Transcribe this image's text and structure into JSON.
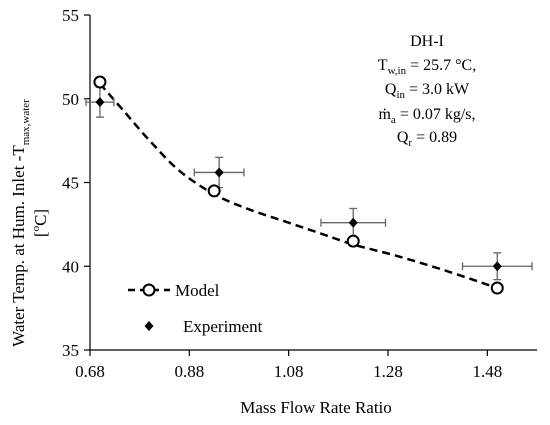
{
  "chart_data": {
    "type": "scatter",
    "title": "",
    "xlabel": "Mass Flow Rate Ratio",
    "ylabel": {
      "prefix": "Water Temp. at Hum. Inlet -T",
      "subscript": "max,water",
      "unit_open": "[",
      "unit_sup": "o",
      "unit_rest": "C]"
    },
    "xlim": [
      0.68,
      1.58
    ],
    "ylim": [
      35,
      55
    ],
    "x_ticks": [
      0.68,
      0.88,
      1.08,
      1.28,
      1.48
    ],
    "x_tick_labels": [
      "0.68",
      "0.88",
      "1.08",
      "1.28",
      "1.48"
    ],
    "y_ticks": [
      35,
      40,
      45,
      50,
      55
    ],
    "y_tick_labels": [
      "35",
      "40",
      "45",
      "50",
      "55"
    ],
    "grid": false,
    "legend_position": "bottom-left",
    "series": [
      {
        "name": "Model",
        "marker": "open-circle",
        "points": [
          {
            "x": 0.7,
            "y": 51.0
          },
          {
            "x": 0.93,
            "y": 44.5
          },
          {
            "x": 1.21,
            "y": 41.5
          },
          {
            "x": 1.5,
            "y": 38.7
          }
        ],
        "trend": {
          "style": "dashed",
          "x": [
            0.7,
            0.75,
            0.8,
            0.86,
            0.93,
            1.0,
            1.08,
            1.15,
            1.21,
            1.3,
            1.4,
            1.5
          ],
          "y": [
            50.9,
            49.2,
            47.5,
            45.7,
            44.3,
            43.4,
            42.6,
            41.9,
            41.3,
            40.6,
            39.7,
            38.7
          ]
        }
      },
      {
        "name": "Experiment",
        "marker": "filled-diamond",
        "points": [
          {
            "x": 0.7,
            "y": 49.8,
            "xerr": 0.028,
            "yerr": 0.9
          },
          {
            "x": 0.94,
            "y": 45.6,
            "xerr": 0.05,
            "yerr": 0.9
          },
          {
            "x": 1.21,
            "y": 42.6,
            "xerr": 0.065,
            "yerr": 0.85
          },
          {
            "x": 1.5,
            "y": 40.0,
            "xerr": 0.07,
            "yerr": 0.8
          }
        ]
      }
    ],
    "annotations": [
      {
        "id": "case",
        "text": "DH-I"
      },
      {
        "id": "tw_in",
        "base": "T",
        "sub": "w,in",
        "rest": " = 25.7 °C,"
      },
      {
        "id": "q_in",
        "base": "Q",
        "sub": "in",
        "rest": " = 3.0 kW"
      },
      {
        "id": "m_a",
        "base": "ṁ",
        "sub": "a",
        "rest": " = 0.07 kg/s,"
      },
      {
        "id": "q_r",
        "base": "Q",
        "sub": "r",
        "rest": " = 0.89"
      }
    ]
  },
  "colors": {
    "series_line": "#000000",
    "error_bars": "#666666",
    "axis": "#000000"
  }
}
